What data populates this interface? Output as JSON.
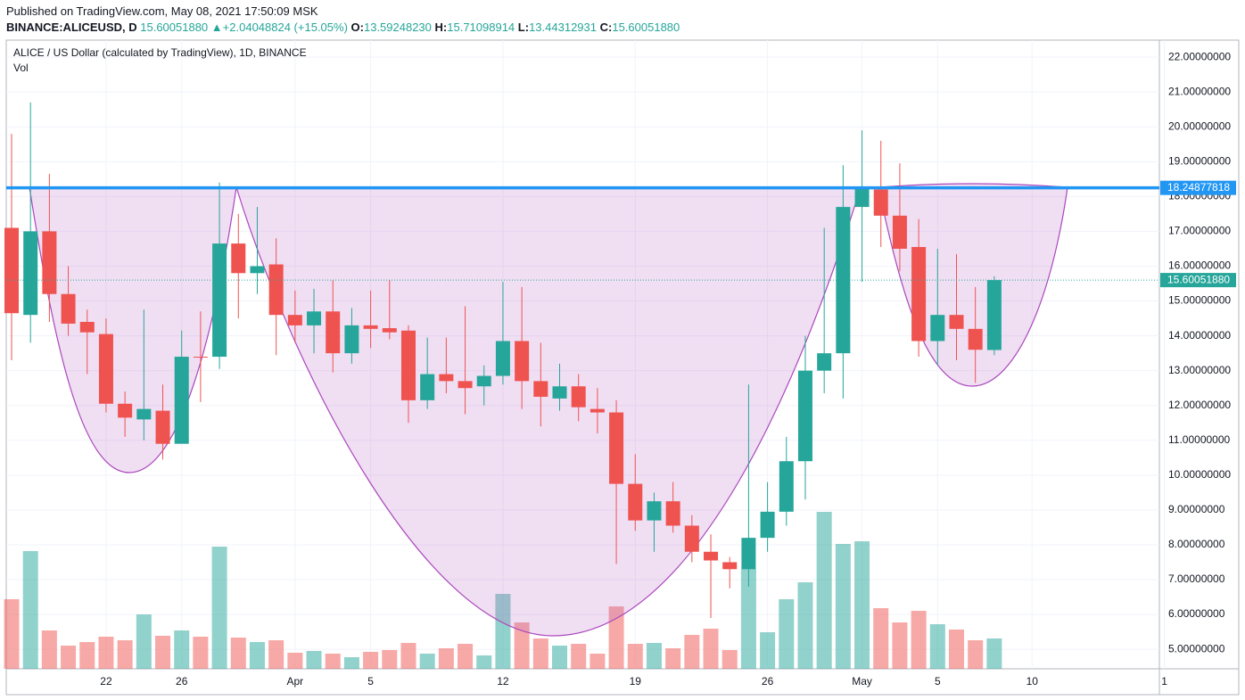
{
  "header": {
    "published": "Published on TradingView.com, May 08, 2021 17:50:09 MSK",
    "symbol": "BINANCE:ALICEUSD, D",
    "price": "15.60051880",
    "arrow": "▲",
    "change": "+2.04048824 (+15.05%)",
    "o_label": "O:",
    "o": "13.59248230",
    "h_label": "H:",
    "h": "15.71098914",
    "l_label": "L:",
    "l": "13.44312931",
    "c_label": "C:",
    "c": "15.60051880"
  },
  "chart_data": {
    "type": "candlestick",
    "title": "ALICE / US Dollar (calculated by TradingView), 1D, BINANCE",
    "volume_label": "Vol",
    "categories": [
      null,
      null,
      null,
      null,
      null,
      "22",
      null,
      null,
      null,
      "26",
      null,
      null,
      null,
      null,
      null,
      "Apr",
      null,
      null,
      null,
      "5",
      null,
      null,
      null,
      null,
      null,
      null,
      "12",
      null,
      null,
      null,
      null,
      null,
      null,
      "19",
      null,
      null,
      null,
      null,
      null,
      null,
      "26",
      null,
      null,
      null,
      null,
      "May",
      null,
      null,
      null,
      "5",
      null,
      null,
      null,
      null,
      "10",
      null,
      null,
      null,
      null,
      null,
      null,
      "1"
    ],
    "open": [
      17.1,
      14.6,
      17.0,
      15.2,
      14.4,
      14.05,
      12.05,
      11.6,
      11.85,
      10.9,
      13.4,
      13.4,
      16.65,
      15.8,
      16.05,
      14.6,
      14.3,
      14.7,
      13.5,
      14.3,
      14.22,
      14.15,
      12.15,
      12.9,
      12.7,
      12.55,
      12.85,
      13.85,
      12.7,
      12.2,
      12.55,
      11.9,
      11.8,
      9.75,
      8.7,
      9.25,
      8.55,
      7.8,
      7.5,
      7.3,
      8.2,
      8.95,
      10.4,
      13.0,
      13.5,
      17.7,
      18.2,
      17.45,
      16.55,
      13.85,
      14.6,
      14.2,
      13.5924823,
      null,
      null,
      null,
      null,
      null,
      null,
      null,
      null,
      null
    ],
    "high": [
      19.8,
      20.7,
      18.65,
      16.0,
      14.75,
      14.5,
      12.4,
      14.75,
      12.6,
      14.15,
      14.7,
      18.4,
      17.5,
      17.7,
      16.8,
      15.3,
      15.35,
      15.6,
      14.8,
      15.3,
      15.6,
      14.3,
      13.95,
      13.95,
      14.85,
      13.15,
      15.55,
      15.4,
      13.8,
      13.2,
      12.9,
      12.5,
      12.15,
      10.6,
      9.5,
      9.8,
      8.85,
      8.3,
      7.65,
      12.6,
      9.8,
      11.1,
      14.0,
      17.1,
      18.9,
      19.9,
      19.6,
      18.95,
      17.35,
      16.5,
      16.35,
      15.4,
      15.71098914,
      null,
      null,
      null,
      null,
      null,
      null,
      null,
      null,
      null
    ],
    "low": [
      13.3,
      13.8,
      14.4,
      14.0,
      12.9,
      11.8,
      11.1,
      11.0,
      10.45,
      11.0,
      12.1,
      13.05,
      14.5,
      15.2,
      13.45,
      13.8,
      13.5,
      12.95,
      13.2,
      13.65,
      13.9,
      11.5,
      11.9,
      12.35,
      11.75,
      12.0,
      12.6,
      11.9,
      11.4,
      11.85,
      11.55,
      11.2,
      7.45,
      8.4,
      7.8,
      8.35,
      7.5,
      5.9,
      6.75,
      6.8,
      7.8,
      8.55,
      9.3,
      12.35,
      12.2,
      15.55,
      16.55,
      15.85,
      13.4,
      13.15,
      13.3,
      12.65,
      13.44312931,
      null,
      null,
      null,
      null,
      null,
      null,
      null,
      null,
      null
    ],
    "close": [
      14.65,
      17.0,
      15.2,
      14.35,
      14.1,
      12.05,
      11.65,
      11.9,
      10.9,
      13.4,
      13.38,
      16.65,
      15.8,
      16.0,
      14.6,
      14.3,
      14.7,
      13.5,
      14.3,
      14.2,
      14.1,
      12.15,
      12.9,
      12.7,
      12.5,
      12.85,
      13.85,
      12.7,
      12.25,
      12.55,
      11.95,
      11.8,
      9.75,
      8.7,
      9.25,
      8.55,
      7.8,
      7.55,
      7.3,
      8.2,
      8.95,
      10.4,
      13.0,
      13.5,
      17.7,
      18.25,
      17.45,
      16.5,
      13.85,
      14.6,
      14.2,
      13.6,
      15.6005188,
      null,
      null,
      null,
      null,
      null,
      null,
      null,
      null,
      null
    ],
    "volume": [
      78,
      132,
      43,
      26,
      30,
      36,
      32,
      61,
      37,
      43,
      36,
      137,
      35,
      30,
      32,
      18,
      20,
      17,
      13,
      19,
      21,
      29,
      17,
      23,
      28,
      15,
      84,
      52,
      34,
      26,
      28,
      17,
      70,
      28,
      29,
      23,
      38,
      45,
      21,
      112,
      41,
      78,
      97,
      176,
      140,
      143,
      68,
      52,
      65,
      50,
      44,
      32,
      34,
      null,
      null,
      null,
      null,
      null,
      null,
      null,
      null,
      null
    ],
    "up_color": "#26a69a",
    "down_color": "#ef5350",
    "ylim": [
      4.44,
      22.49
    ],
    "yticks": [
      {
        "value": 5,
        "label": "5.00000000"
      },
      {
        "value": 6,
        "label": "6.00000000"
      },
      {
        "value": 7,
        "label": "7.00000000"
      },
      {
        "value": 8,
        "label": "8.00000000"
      },
      {
        "value": 9,
        "label": "9.00000000"
      },
      {
        "value": 10,
        "label": "10.00000000"
      },
      {
        "value": 11,
        "label": "11.00000000"
      },
      {
        "value": 12,
        "label": "12.00000000"
      },
      {
        "value": 13,
        "label": "13.00000000"
      },
      {
        "value": 14,
        "label": "14.00000000"
      },
      {
        "value": 15,
        "label": "15.00000000"
      },
      {
        "value": 16,
        "label": "16.00000000"
      },
      {
        "value": 17,
        "label": "17.00000000"
      },
      {
        "value": 18,
        "label": "18.00000000"
      },
      {
        "value": 19,
        "label": "19.00000000"
      },
      {
        "value": 20,
        "label": "20.00000000"
      },
      {
        "value": 21,
        "label": "21.00000000"
      },
      {
        "value": 22,
        "label": "22.00000000"
      }
    ],
    "grid": true,
    "hline": {
      "value": 18.24877818,
      "label": "18.24877818",
      "color": "#2196f3"
    },
    "last_price": {
      "value": 15.6005188,
      "label": "15.60051880",
      "color": "#26a69a"
    }
  }
}
